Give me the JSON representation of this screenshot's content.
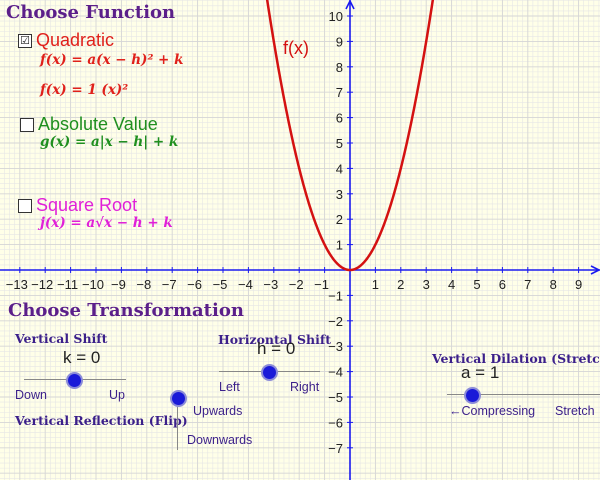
{
  "headings": {
    "choose_function": "Choose Function",
    "choose_transformation": "Choose Transformation"
  },
  "functions": {
    "quadratic": {
      "label": "Quadratic",
      "checked": true,
      "checkmark": "☑",
      "formula": "f(x) = a(x − h)² + k",
      "current": "f(x) = 1 (x)²",
      "color": "#e0201b"
    },
    "absolute": {
      "label": "Absolute Value",
      "checked": false,
      "checkmark": "",
      "formula": "g(x) = a|x − h| + k",
      "color": "#1f8f1f"
    },
    "sqrt": {
      "label": "Square Root",
      "checked": false,
      "checkmark": "",
      "formula": "j(x) = a√x − h + k",
      "color": "#e020d8"
    }
  },
  "curve_label": "f(x)",
  "axes": {
    "x_ticks": [
      "−13",
      "−12",
      "−11",
      "−10",
      "−9",
      "−8",
      "−7",
      "−6",
      "−5",
      "−4",
      "−3",
      "−2",
      "−1",
      "1",
      "2",
      "3",
      "4",
      "5",
      "6",
      "7",
      "8",
      "9"
    ],
    "y_ticks": [
      "10",
      "9",
      "8",
      "7",
      "6",
      "5",
      "4",
      "3",
      "2",
      "1",
      "−1",
      "−2",
      "−3",
      "−4",
      "−5",
      "−6",
      "−7"
    ]
  },
  "sliders": {
    "vertical_shift": {
      "title": "Vertical Shift",
      "value_text": "k = 0",
      "left": "Down",
      "right": "Up",
      "value": 0
    },
    "horizontal_shift": {
      "title": "Horizontal Shift",
      "value_text": "h = 0",
      "left": "Left",
      "right": "Right",
      "value": 0
    },
    "vertical_dilation": {
      "title": "Vertical Dilation (Stretch",
      "value_text": "a = 1",
      "left": "←Compressing",
      "right": "Stretch",
      "value": 1
    },
    "vertical_reflection": {
      "title": "Vertical Reflection (Flip)",
      "top": "Upwards",
      "bottom": "Downwards"
    }
  },
  "colors": {
    "background": "#ffffe8",
    "grid": "#e6e6e6",
    "axis": "#1a1af0",
    "curve": "#d41111",
    "slider_point": "#1a1ad8"
  },
  "chart_data": {
    "type": "line",
    "title": "",
    "series": [
      {
        "name": "f(x)",
        "function": "1 (x)^2",
        "x": [
          -3.2,
          -3,
          -2,
          -1,
          0,
          1,
          2,
          3,
          3.4
        ],
        "y": [
          10.24,
          9,
          4,
          1,
          0,
          1,
          4,
          9,
          11.56
        ]
      }
    ],
    "xlim": [
      -13.5,
      9.8
    ],
    "ylim": [
      -7.6,
      10.6
    ],
    "grid": true
  }
}
